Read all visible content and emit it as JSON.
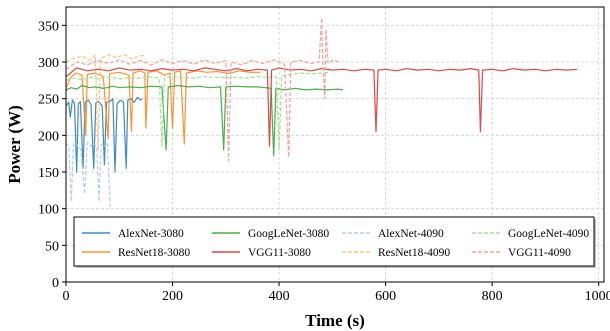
{
  "chart_data": {
    "type": "line",
    "title": "",
    "xlabel": "Time (s)",
    "ylabel": "Power (W)",
    "xlim": [
      0,
      1010
    ],
    "ylim": [
      0,
      375
    ],
    "xticks": [
      0,
      200,
      400,
      600,
      800,
      1000
    ],
    "yticks": [
      0,
      50,
      100,
      150,
      200,
      250,
      300,
      350
    ],
    "grid": true,
    "legend_position": "bottom, inside plot, 4 columns",
    "series": [
      {
        "name": "AlexNet-3080",
        "color": "#1f77b4",
        "style": "solid",
        "alpha": 0.85,
        "points": [
          [
            0,
            240
          ],
          [
            5,
            245
          ],
          [
            8,
            225
          ],
          [
            12,
            248
          ],
          [
            16,
            244
          ],
          [
            20,
            150
          ],
          [
            23,
            243
          ],
          [
            27,
            246
          ],
          [
            32,
            155
          ],
          [
            36,
            245
          ],
          [
            42,
            248
          ],
          [
            47,
            242
          ],
          [
            52,
            155
          ],
          [
            56,
            244
          ],
          [
            62,
            246
          ],
          [
            68,
            240
          ],
          [
            72,
            160
          ],
          [
            76,
            245
          ],
          [
            84,
            247
          ],
          [
            88,
            250
          ],
          [
            92,
            150
          ],
          [
            96,
            243
          ],
          [
            102,
            248
          ],
          [
            108,
            245
          ],
          [
            113,
            155
          ],
          [
            116,
            248
          ],
          [
            122,
            250
          ],
          [
            128,
            245
          ],
          [
            134,
            252
          ],
          [
            140,
            248
          ],
          [
            143,
            250
          ]
        ]
      },
      {
        "name": "ResNet18-3080",
        "color": "#ff7f0e",
        "style": "solid",
        "alpha": 0.85,
        "points": [
          [
            0,
            265
          ],
          [
            10,
            280
          ],
          [
            20,
            285
          ],
          [
            30,
            282
          ],
          [
            37,
            200
          ],
          [
            40,
            283
          ],
          [
            55,
            285
          ],
          [
            70,
            280
          ],
          [
            79,
            195
          ],
          [
            82,
            284
          ],
          [
            100,
            286
          ],
          [
            118,
            282
          ],
          [
            123,
            205
          ],
          [
            126,
            285
          ],
          [
            140,
            288
          ],
          [
            148,
            285
          ],
          [
            150,
            210
          ],
          [
            154,
            286
          ],
          [
            170,
            288
          ],
          [
            185,
            282
          ],
          [
            195,
            285
          ],
          [
            200,
            210
          ],
          [
            204,
            286
          ],
          [
            215,
            288
          ],
          [
            222,
            188
          ],
          [
            226,
            285
          ],
          [
            245,
            288
          ],
          [
            265,
            286
          ],
          [
            285,
            287
          ],
          [
            305,
            284
          ],
          [
            325,
            288
          ],
          [
            345,
            286
          ],
          [
            365,
            286
          ]
        ]
      },
      {
        "name": "GoogLeNet-3080",
        "color": "#2ca02c",
        "style": "solid",
        "alpha": 0.85,
        "points": [
          [
            0,
            262
          ],
          [
            10,
            265
          ],
          [
            20,
            263
          ],
          [
            30,
            268
          ],
          [
            45,
            265
          ],
          [
            55,
            266
          ],
          [
            70,
            264
          ],
          [
            88,
            267
          ],
          [
            100,
            265
          ],
          [
            120,
            266
          ],
          [
            140,
            265
          ],
          [
            160,
            267
          ],
          [
            180,
            266
          ],
          [
            188,
            180
          ],
          [
            192,
            266
          ],
          [
            210,
            268
          ],
          [
            230,
            266
          ],
          [
            250,
            267
          ],
          [
            270,
            265
          ],
          [
            290,
            266
          ],
          [
            296,
            180
          ],
          [
            300,
            266
          ],
          [
            320,
            267
          ],
          [
            340,
            266
          ],
          [
            360,
            266
          ],
          [
            375,
            265
          ],
          [
            385,
            264
          ],
          [
            390,
            172
          ],
          [
            394,
            264
          ],
          [
            410,
            262
          ],
          [
            430,
            264
          ],
          [
            450,
            262
          ],
          [
            470,
            263
          ],
          [
            490,
            262
          ],
          [
            510,
            263
          ],
          [
            520,
            262
          ]
        ]
      },
      {
        "name": "VGG11-3080",
        "color": "#d62728",
        "style": "solid",
        "alpha": 0.85,
        "points": [
          [
            0,
            280
          ],
          [
            20,
            292
          ],
          [
            40,
            288
          ],
          [
            60,
            290
          ],
          [
            80,
            288
          ],
          [
            100,
            292
          ],
          [
            120,
            289
          ],
          [
            140,
            290
          ],
          [
            160,
            288
          ],
          [
            180,
            291
          ],
          [
            200,
            289
          ],
          [
            220,
            290
          ],
          [
            240,
            288
          ],
          [
            260,
            292
          ],
          [
            280,
            290
          ],
          [
            300,
            288
          ],
          [
            320,
            291
          ],
          [
            340,
            288
          ],
          [
            360,
            290
          ],
          [
            378,
            289
          ],
          [
            382,
            185
          ],
          [
            386,
            289
          ],
          [
            400,
            292
          ],
          [
            420,
            289
          ],
          [
            440,
            290
          ],
          [
            460,
            288
          ],
          [
            480,
            291
          ],
          [
            500,
            289
          ],
          [
            520,
            290
          ],
          [
            540,
            288
          ],
          [
            560,
            290
          ],
          [
            578,
            289
          ],
          [
            582,
            205
          ],
          [
            586,
            289
          ],
          [
            600,
            290
          ],
          [
            620,
            288
          ],
          [
            640,
            291
          ],
          [
            660,
            289
          ],
          [
            680,
            290
          ],
          [
            700,
            288
          ],
          [
            720,
            290
          ],
          [
            740,
            289
          ],
          [
            760,
            291
          ],
          [
            775,
            289
          ],
          [
            778,
            205
          ],
          [
            782,
            289
          ],
          [
            800,
            290
          ],
          [
            820,
            288
          ],
          [
            840,
            291
          ],
          [
            860,
            289
          ],
          [
            880,
            290
          ],
          [
            900,
            288
          ],
          [
            920,
            290
          ],
          [
            940,
            289
          ],
          [
            960,
            290
          ]
        ]
      },
      {
        "name": "AlexNet-4090",
        "color": "#aec7e8",
        "style": "dashed",
        "alpha": 0.9,
        "points": [
          [
            0,
            190
          ],
          [
            5,
            185
          ],
          [
            10,
            110
          ],
          [
            14,
            190
          ],
          [
            20,
            188
          ],
          [
            28,
            180
          ],
          [
            35,
            120
          ],
          [
            40,
            190
          ],
          [
            46,
            185
          ],
          [
            52,
            190
          ],
          [
            58,
            182
          ],
          [
            62,
            110
          ],
          [
            66,
            188
          ],
          [
            72,
            185
          ],
          [
            78,
            190
          ],
          [
            83,
            100
          ]
        ]
      },
      {
        "name": "ResNet18-4090",
        "color": "#ffbb78",
        "style": "dashed",
        "alpha": 0.9,
        "points": [
          [
            0,
            300
          ],
          [
            15,
            305
          ],
          [
            30,
            308
          ],
          [
            45,
            302
          ],
          [
            55,
            310
          ],
          [
            60,
            180
          ],
          [
            65,
            305
          ],
          [
            80,
            310
          ],
          [
            95,
            306
          ],
          [
            110,
            310
          ],
          [
            125,
            304
          ],
          [
            135,
            308
          ],
          [
            150,
            309
          ]
        ]
      },
      {
        "name": "GoogLeNet-4090",
        "color": "#98df8a",
        "style": "dashed",
        "alpha": 0.9,
        "points": [
          [
            0,
            275
          ],
          [
            15,
            278
          ],
          [
            30,
            276
          ],
          [
            45,
            279
          ],
          [
            60,
            277
          ],
          [
            75,
            280
          ],
          [
            90,
            278
          ],
          [
            105,
            277
          ],
          [
            120,
            279
          ],
          [
            135,
            278
          ],
          [
            150,
            280
          ],
          [
            165,
            279
          ],
          [
            175,
            278
          ],
          [
            180,
            185
          ],
          [
            185,
            278
          ],
          [
            200,
            280
          ],
          [
            220,
            279
          ],
          [
            240,
            278
          ],
          [
            260,
            280
          ],
          [
            280,
            279
          ],
          [
            300,
            278
          ],
          [
            320,
            279
          ],
          [
            340,
            278
          ],
          [
            360,
            280
          ],
          [
            380,
            279
          ],
          [
            395,
            280
          ],
          [
            400,
            180
          ],
          [
            405,
            281
          ],
          [
            420,
            283
          ],
          [
            440,
            285
          ],
          [
            460,
            284
          ],
          [
            480,
            285
          ],
          [
            495,
            286
          ]
        ]
      },
      {
        "name": "VGG11-4090",
        "color": "#ff9896",
        "style": "dashed",
        "alpha": 0.95,
        "points": [
          [
            0,
            290
          ],
          [
            20,
            300
          ],
          [
            40,
            296
          ],
          [
            60,
            302
          ],
          [
            80,
            298
          ],
          [
            100,
            303
          ],
          [
            120,
            297
          ],
          [
            140,
            302
          ],
          [
            160,
            296
          ],
          [
            180,
            303
          ],
          [
            200,
            298
          ],
          [
            220,
            302
          ],
          [
            240,
            297
          ],
          [
            260,
            303
          ],
          [
            280,
            298
          ],
          [
            300,
            302
          ],
          [
            305,
            165
          ],
          [
            310,
            300
          ],
          [
            330,
            296
          ],
          [
            350,
            302
          ],
          [
            370,
            298
          ],
          [
            390,
            303
          ],
          [
            410,
            297
          ],
          [
            418,
            170
          ],
          [
            422,
            300
          ],
          [
            440,
            302
          ],
          [
            460,
            298
          ],
          [
            475,
            300
          ],
          [
            480,
            360
          ],
          [
            482,
            298
          ],
          [
            486,
            250
          ],
          [
            488,
            345
          ],
          [
            492,
            298
          ],
          [
            500,
            302
          ],
          [
            515,
            300
          ]
        ]
      }
    ]
  }
}
